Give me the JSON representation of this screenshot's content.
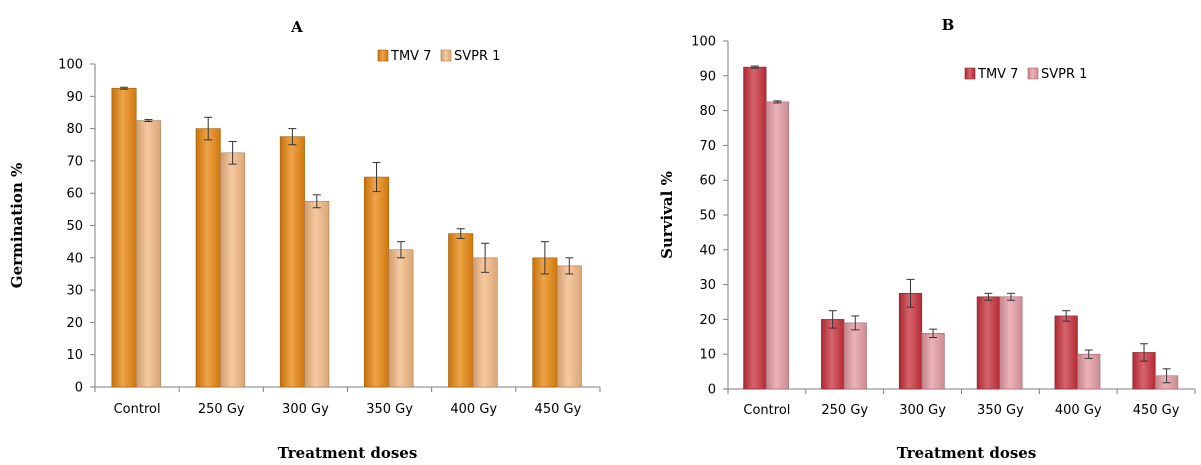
{
  "chart_data": [
    {
      "type": "bar",
      "title": "A",
      "xlabel": "Treatment doses",
      "ylabel": "Germination %",
      "ylim": [
        0,
        100
      ],
      "yticks": [
        0,
        10,
        20,
        30,
        40,
        50,
        60,
        70,
        80,
        90,
        100
      ],
      "categories": [
        "Control",
        "250 Gy",
        "300 Gy",
        "350 Gy",
        "400 Gy",
        "450 Gy"
      ],
      "legend_position": "top-right",
      "series": [
        {
          "name": "TMV 7",
          "color": "#e8850c",
          "values": [
            92.5,
            80,
            77.5,
            65,
            47.5,
            40
          ],
          "errors": [
            0.3,
            3.5,
            2.5,
            4.5,
            1.5,
            5
          ]
        },
        {
          "name": "SVPR 1",
          "color": "#f2b882",
          "values": [
            82.5,
            72.5,
            57.5,
            42.5,
            40,
            37.5
          ],
          "errors": [
            0.3,
            3.5,
            2,
            2.5,
            4.5,
            2.5
          ]
        }
      ]
    },
    {
      "type": "bar",
      "title": "B",
      "xlabel": "Treatment doses",
      "ylabel": "Survival %",
      "ylim": [
        0,
        100
      ],
      "yticks": [
        0,
        10,
        20,
        30,
        40,
        50,
        60,
        70,
        80,
        90,
        100
      ],
      "categories": [
        "Control",
        "250 Gy",
        "300 Gy",
        "350 Gy",
        "400 Gy",
        "450 Gy"
      ],
      "legend_position": "top-right",
      "series": [
        {
          "name": "TMV 7",
          "color": "#c8303c",
          "values": [
            92.5,
            20,
            27.5,
            26.5,
            21,
            10.5
          ],
          "errors": [
            0.3,
            2.5,
            4,
            1,
            1.5,
            2.5
          ]
        },
        {
          "name": "SVPR 1",
          "color": "#e49aa2",
          "values": [
            82.5,
            19,
            16,
            26.5,
            10,
            3.8
          ],
          "errors": [
            0.3,
            2,
            1.2,
            1,
            1.2,
            2
          ]
        }
      ]
    }
  ]
}
